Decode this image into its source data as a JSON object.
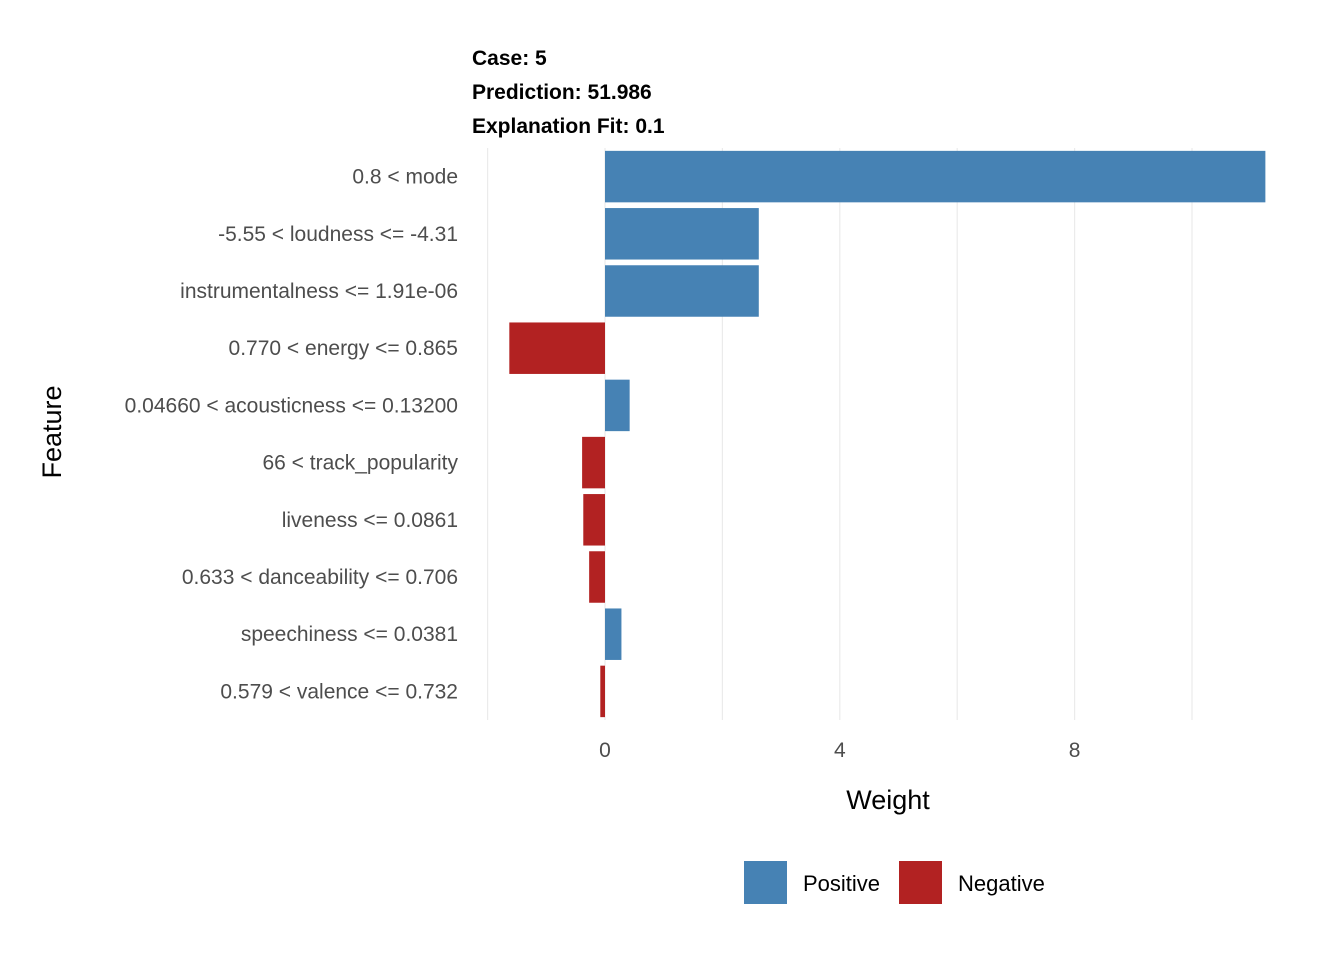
{
  "chart_data": {
    "type": "bar",
    "orientation": "horizontal",
    "header_lines": [
      "Case: 5",
      "Prediction: 51.986",
      "Explanation Fit: 0.1"
    ],
    "xlabel": "Weight",
    "ylabel": "Feature",
    "xlim": [
      -2.0,
      11.3
    ],
    "xticks": [
      0,
      4,
      8
    ],
    "grid": true,
    "legend_position": "bottom",
    "features": [
      {
        "label": "0.8 < mode",
        "weight": 11.25,
        "sign": "Positive"
      },
      {
        "label": "-5.55 < loudness <= -4.31",
        "weight": 2.62,
        "sign": "Positive"
      },
      {
        "label": "instrumentalness <= 1.91e-06",
        "weight": 2.62,
        "sign": "Positive"
      },
      {
        "label": "0.770 < energy <= 0.865",
        "weight": -1.63,
        "sign": "Negative"
      },
      {
        "label": "0.04660 < acousticness <= 0.13200",
        "weight": 0.42,
        "sign": "Positive"
      },
      {
        "label": "66 < track_popularity",
        "weight": -0.39,
        "sign": "Negative"
      },
      {
        "label": "liveness <= 0.0861",
        "weight": -0.37,
        "sign": "Negative"
      },
      {
        "label": "0.633 < danceability <= 0.706",
        "weight": -0.27,
        "sign": "Negative"
      },
      {
        "label": "speechiness <= 0.0381",
        "weight": 0.28,
        "sign": "Positive"
      },
      {
        "label": "0.579 < valence <= 0.732",
        "weight": -0.08,
        "sign": "Negative"
      }
    ],
    "legend": [
      {
        "name": "Positive",
        "color": "#4682b4"
      },
      {
        "name": "Negative",
        "color": "#b22222"
      }
    ]
  }
}
